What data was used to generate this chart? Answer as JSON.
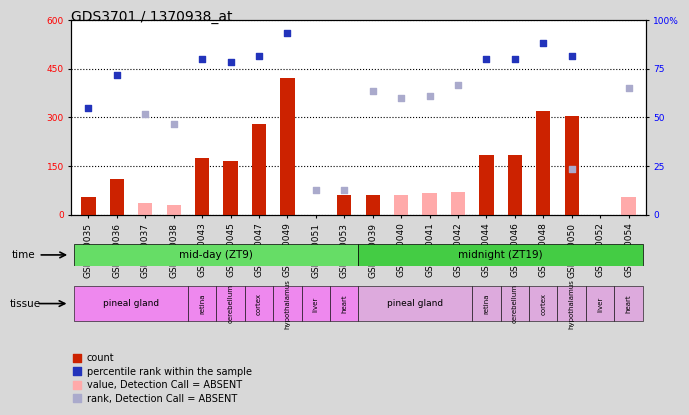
{
  "title": "GDS3701 / 1370938_at",
  "samples": [
    "GSM310035",
    "GSM310036",
    "GSM310037",
    "GSM310038",
    "GSM310043",
    "GSM310045",
    "GSM310047",
    "GSM310049",
    "GSM310051",
    "GSM310053",
    "GSM310039",
    "GSM310040",
    "GSM310041",
    "GSM310042",
    "GSM310044",
    "GSM310046",
    "GSM310048",
    "GSM310050",
    "GSM310052",
    "GSM310054"
  ],
  "count_values": [
    55,
    110,
    null,
    null,
    175,
    165,
    280,
    420,
    null,
    60,
    60,
    null,
    null,
    null,
    185,
    185,
    320,
    305,
    null,
    null
  ],
  "count_absent": [
    null,
    null,
    35,
    30,
    null,
    null,
    null,
    null,
    null,
    null,
    null,
    60,
    65,
    70,
    null,
    null,
    null,
    null,
    null,
    55
  ],
  "rank_values": [
    330,
    430,
    null,
    null,
    480,
    470,
    490,
    560,
    null,
    null,
    null,
    null,
    null,
    null,
    480,
    480,
    530,
    490,
    null,
    null
  ],
  "rank_absent": [
    null,
    null,
    310,
    280,
    null,
    null,
    null,
    null,
    75,
    75,
    380,
    360,
    365,
    400,
    null,
    null,
    null,
    140,
    null,
    390
  ],
  "ylim_left": [
    0,
    600
  ],
  "yticks_left": [
    0,
    150,
    300,
    450,
    600
  ],
  "yticks_right": [
    0,
    25,
    50,
    75,
    100
  ],
  "bar_color": "#cc2200",
  "bar_absent_color": "#ffaaaa",
  "rank_color": "#2233bb",
  "rank_absent_color": "#aaaacc",
  "bar_width": 0.5,
  "title_fontsize": 10,
  "tick_fontsize": 6.5,
  "background_color": "#d8d8d8",
  "plot_bg": "#ffffff",
  "time_green": "#66dd66",
  "tissue_pink": "#ee88ee",
  "tissue_light": "#ddaadd"
}
